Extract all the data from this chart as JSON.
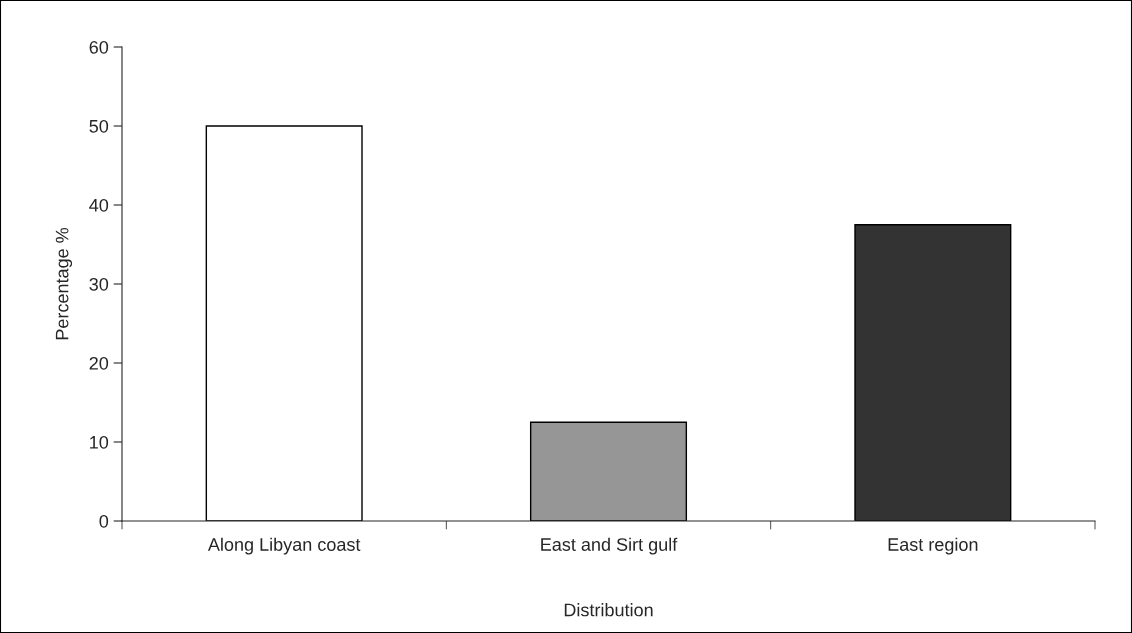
{
  "chart_data": {
    "type": "bar",
    "xlabel": "Distribution",
    "ylabel": "Percentage %",
    "categories": [
      "Along Libyan coast",
      "East and Sirt gulf",
      "East region"
    ],
    "values": [
      50,
      12.5,
      37.5
    ],
    "colors": [
      "#ffffff",
      "#969696",
      "#333333"
    ],
    "ylim": [
      0,
      60
    ],
    "yticks": [
      0,
      10,
      20,
      30,
      40,
      50,
      60
    ],
    "grid": false,
    "legend": false
  }
}
